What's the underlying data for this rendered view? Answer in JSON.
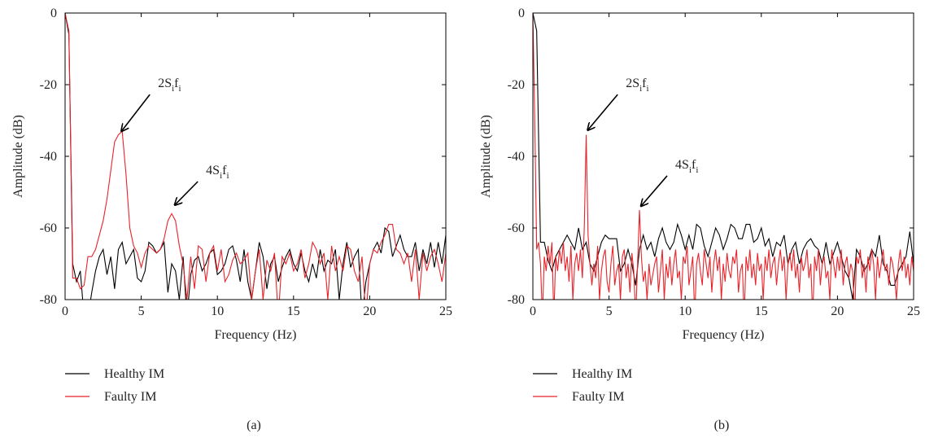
{
  "chart_data": [
    {
      "type": "line",
      "subtitle": "(a)",
      "xlabel": "Frequency (Hz)",
      "ylabel": "Amplitude (dB)",
      "xlim": [
        0,
        25
      ],
      "ylim": [
        -80,
        0
      ],
      "xticks": [
        0,
        5,
        10,
        15,
        20,
        25
      ],
      "yticks": [
        -80,
        -60,
        -40,
        -20,
        0
      ],
      "legend": "bottom",
      "x": [
        0,
        0.25,
        0.5,
        0.75,
        1,
        1.25,
        1.5,
        1.75,
        2,
        2.25,
        2.5,
        2.75,
        3,
        3.25,
        3.5,
        3.75,
        4,
        4.25,
        4.5,
        4.75,
        5,
        5.25,
        5.5,
        5.75,
        6,
        6.25,
        6.5,
        6.75,
        7,
        7.25,
        7.5,
        7.75,
        8,
        8.25,
        8.5,
        8.75,
        9,
        9.25,
        9.5,
        9.75,
        10,
        10.25,
        10.5,
        10.75,
        11,
        11.25,
        11.5,
        11.75,
        12,
        12.25,
        12.5,
        12.75,
        13,
        13.25,
        13.5,
        13.75,
        14,
        14.25,
        14.5,
        14.75,
        15,
        15.25,
        15.5,
        15.75,
        16,
        16.25,
        16.5,
        16.75,
        17,
        17.25,
        17.5,
        17.75,
        18,
        18.25,
        18.5,
        18.75,
        19,
        19.25,
        19.5,
        19.75,
        20,
        20.25,
        20.5,
        20.75,
        21,
        21.25,
        21.5,
        21.75,
        22,
        22.25,
        22.5,
        22.75,
        23,
        23.25,
        23.5,
        23.75,
        24,
        24.25,
        24.5,
        24.75,
        25
      ],
      "series": [
        {
          "name": "Healthy IM",
          "color": "#000000",
          "values": [
            0,
            -6,
            -70,
            -75,
            -72,
            -85,
            -85,
            -78,
            -72,
            -68,
            -66,
            -73,
            -68,
            -77,
            -66,
            -64,
            -70,
            -68,
            -66,
            -74,
            -75,
            -72,
            -64,
            -65,
            -67,
            -66,
            -64,
            -78,
            -70,
            -72,
            -80,
            -68,
            -85,
            -73,
            -69,
            -68,
            -72,
            -70,
            -67,
            -66,
            -73,
            -72,
            -70,
            -66,
            -65,
            -69,
            -75,
            -66,
            -75,
            -80,
            -72,
            -64,
            -68,
            -77,
            -70,
            -68,
            -75,
            -71,
            -68,
            -66,
            -70,
            -72,
            -67,
            -72,
            -75,
            -70,
            -74,
            -66,
            -72,
            -69,
            -70,
            -66,
            -80,
            -70,
            -64,
            -71,
            -68,
            -66,
            -85,
            -75,
            -70,
            -66,
            -64,
            -67,
            -60,
            -61,
            -68,
            -65,
            -62,
            -66,
            -68,
            -68,
            -64,
            -72,
            -66,
            -70,
            -64,
            -71,
            -64,
            -70,
            -62
          ]
        },
        {
          "name": "Faulty IM",
          "color": "#e8232a",
          "values": [
            0,
            -5,
            -74,
            -74,
            -77,
            -76,
            -68,
            -68,
            -66,
            -62,
            -58,
            -52,
            -44,
            -36,
            -34,
            -33,
            -45,
            -60,
            -65,
            -67,
            -71,
            -67,
            -65,
            -66,
            -67,
            -66,
            -63,
            -58,
            -56,
            -58,
            -65,
            -70,
            -80,
            -68,
            -77,
            -65,
            -66,
            -75,
            -67,
            -65,
            -72,
            -66,
            -75,
            -73,
            -69,
            -67,
            -70,
            -69,
            -67,
            -80,
            -72,
            -66,
            -80,
            -69,
            -72,
            -67,
            -85,
            -68,
            -70,
            -67,
            -72,
            -70,
            -66,
            -74,
            -70,
            -64,
            -66,
            -70,
            -67,
            -80,
            -65,
            -72,
            -68,
            -72,
            -65,
            -66,
            -72,
            -75,
            -68,
            -85,
            -70,
            -66,
            -67,
            -64,
            -62,
            -59,
            -59,
            -66,
            -67,
            -70,
            -67,
            -75,
            -66,
            -80,
            -67,
            -72,
            -68,
            -66,
            -70,
            -75,
            -67
          ]
        }
      ],
      "annotations": [
        {
          "text": [
            "2S",
            "i",
            "f",
            "i"
          ],
          "xy": [
            3.7,
            -33
          ],
          "xytext": [
            6.1,
            -20.7
          ]
        },
        {
          "text": [
            "4S",
            "i",
            "f",
            "i"
          ],
          "xy": [
            7.2,
            -53.6
          ],
          "xytext": [
            9.25,
            -45
          ]
        }
      ]
    },
    {
      "type": "line",
      "subtitle": "(b)",
      "xlabel": "Frequency (Hz)",
      "ylabel": "Amplitude (dB)",
      "xlim": [
        0,
        25
      ],
      "ylim": [
        -80,
        0
      ],
      "xticks": [
        0,
        5,
        10,
        15,
        20,
        25
      ],
      "yticks": [
        -80,
        -60,
        -40,
        -20,
        0
      ],
      "legend": "bottom",
      "series": [
        {
          "name": "Healthy IM",
          "color": "#000000",
          "x": [
            0,
            0.25,
            0.5,
            0.75,
            1,
            1.25,
            1.5,
            1.75,
            2,
            2.25,
            2.5,
            2.75,
            3,
            3.25,
            3.5,
            3.75,
            4,
            4.25,
            4.5,
            4.75,
            5,
            5.25,
            5.5,
            5.75,
            6,
            6.25,
            6.5,
            6.75,
            7,
            7.25,
            7.5,
            7.75,
            8,
            8.25,
            8.5,
            8.75,
            9,
            9.25,
            9.5,
            9.75,
            10,
            10.25,
            10.5,
            10.75,
            11,
            11.25,
            11.5,
            11.75,
            12,
            12.25,
            12.5,
            12.75,
            13,
            13.25,
            13.5,
            13.75,
            14,
            14.25,
            14.5,
            14.75,
            15,
            15.25,
            15.5,
            15.75,
            16,
            16.25,
            16.5,
            16.75,
            17,
            17.25,
            17.5,
            17.75,
            18,
            18.25,
            18.5,
            18.75,
            19,
            19.25,
            19.5,
            19.75,
            20,
            20.25,
            20.5,
            20.75,
            21,
            21.25,
            21.5,
            21.75,
            22,
            22.25,
            22.5,
            22.75,
            23,
            23.25,
            23.5,
            23.75,
            24,
            24.25,
            24.5,
            24.75,
            25
          ],
          "values": [
            0,
            -5,
            -64,
            -64,
            -69,
            -72,
            -68,
            -66,
            -64,
            -62,
            -64,
            -66,
            -60,
            -66,
            -64,
            -70,
            -72,
            -68,
            -64,
            -62,
            -63,
            -63,
            -63,
            -72,
            -70,
            -66,
            -70,
            -76,
            -66,
            -62,
            -66,
            -64,
            -68,
            -63,
            -60,
            -64,
            -66,
            -64,
            -59,
            -62,
            -66,
            -62,
            -66,
            -59,
            -60,
            -65,
            -68,
            -64,
            -60,
            -62,
            -66,
            -63,
            -59,
            -60,
            -63,
            -63,
            -59,
            -59,
            -64,
            -63,
            -60,
            -65,
            -63,
            -68,
            -64,
            -65,
            -62,
            -70,
            -66,
            -64,
            -70,
            -66,
            -64,
            -63,
            -65,
            -66,
            -70,
            -64,
            -70,
            -67,
            -64,
            -68,
            -72,
            -74,
            -80,
            -66,
            -68,
            -72,
            -70,
            -66,
            -68,
            -62,
            -70,
            -72,
            -76,
            -76,
            -72,
            -70,
            -68,
            -61,
            -70
          ]
        },
        {
          "name": "Faulty IM",
          "color": "#e8232a",
          "x": [
            0,
            0.125,
            0.25,
            0.375,
            0.5,
            0.625,
            0.75,
            0.875,
            1,
            1.125,
            1.25,
            1.375,
            1.5,
            1.625,
            1.75,
            1.875,
            2,
            2.125,
            2.25,
            2.375,
            2.5,
            2.625,
            2.75,
            2.875,
            3,
            3.125,
            3.25,
            3.375,
            3.5,
            3.625,
            3.75,
            3.875,
            4,
            4.125,
            4.25,
            4.375,
            4.5,
            4.625,
            4.75,
            4.875,
            5,
            5.125,
            5.25,
            5.375,
            5.5,
            5.625,
            5.75,
            5.875,
            6,
            6.125,
            6.25,
            6.375,
            6.5,
            6.625,
            6.75,
            6.875,
            7,
            7.125,
            7.25,
            7.375,
            7.5,
            7.625,
            7.75,
            7.875,
            8,
            8.125,
            8.25,
            8.375,
            8.5,
            8.625,
            8.75,
            8.875,
            9,
            9.125,
            9.25,
            9.375,
            9.5,
            9.625,
            9.75,
            9.875,
            10,
            10.125,
            10.25,
            10.375,
            10.5,
            10.625,
            10.75,
            10.875,
            11,
            11.125,
            11.25,
            11.375,
            11.5,
            11.625,
            11.75,
            11.875,
            12,
            12.125,
            12.25,
            12.375,
            12.5,
            12.625,
            12.75,
            12.875,
            13,
            13.125,
            13.25,
            13.375,
            13.5,
            13.625,
            13.75,
            13.875,
            14,
            14.125,
            14.25,
            14.375,
            14.5,
            14.625,
            14.75,
            14.875,
            15,
            15.125,
            15.25,
            15.375,
            15.5,
            15.625,
            15.75,
            15.875,
            16,
            16.125,
            16.25,
            16.375,
            16.5,
            16.625,
            16.75,
            16.875,
            17,
            17.125,
            17.25,
            17.375,
            17.5,
            17.625,
            17.75,
            17.875,
            18,
            18.125,
            18.25,
            18.375,
            18.5,
            18.625,
            18.75,
            18.875,
            19,
            19.125,
            19.25,
            19.375,
            19.5,
            19.625,
            19.75,
            19.875,
            20,
            20.125,
            20.25,
            20.375,
            20.5,
            20.625,
            20.75,
            20.875,
            21,
            21.125,
            21.25,
            21.375,
            21.5,
            21.625,
            21.75,
            21.875,
            22,
            22.125,
            22.25,
            22.375,
            22.5,
            22.625,
            22.75,
            22.875,
            23,
            23.125,
            23.25,
            23.375,
            23.5,
            23.625,
            23.75,
            23.875,
            24,
            24.125,
            24.25,
            24.375,
            24.5,
            24.625,
            24.75,
            24.875,
            25
          ],
          "values": [
            0,
            -30,
            -66,
            -64,
            -70,
            -85,
            -68,
            -72,
            -65,
            -70,
            -64,
            -85,
            -68,
            -72,
            -66,
            -70,
            -64,
            -72,
            -68,
            -75,
            -65,
            -80,
            -70,
            -67,
            -72,
            -66,
            -74,
            -60,
            -34,
            -62,
            -70,
            -76,
            -70,
            -74,
            -65,
            -80,
            -72,
            -68,
            -66,
            -75,
            -78,
            -70,
            -65,
            -76,
            -72,
            -70,
            -80,
            -68,
            -66,
            -74,
            -70,
            -78,
            -67,
            -72,
            -85,
            -70,
            -55,
            -68,
            -75,
            -72,
            -80,
            -70,
            -76,
            -73,
            -70,
            -68,
            -78,
            -72,
            -66,
            -80,
            -70,
            -74,
            -68,
            -76,
            -70,
            -66,
            -74,
            -72,
            -80,
            -68,
            -70,
            -65,
            -76,
            -72,
            -68,
            -85,
            -70,
            -67,
            -72,
            -76,
            -66,
            -70,
            -74,
            -68,
            -78,
            -70,
            -66,
            -72,
            -68,
            -80,
            -70,
            -75,
            -67,
            -72,
            -74,
            -68,
            -70,
            -66,
            -78,
            -72,
            -70,
            -85,
            -68,
            -72,
            -66,
            -74,
            -70,
            -76,
            -67,
            -72,
            -70,
            -80,
            -68,
            -72,
            -66,
            -74,
            -70,
            -68,
            -76,
            -70,
            -66,
            -72,
            -68,
            -80,
            -70,
            -67,
            -72,
            -66,
            -74,
            -70,
            -78,
            -68,
            -72,
            -70,
            -66,
            -74,
            -70,
            -85,
            -68,
            -72,
            -66,
            -76,
            -70,
            -68,
            -74,
            -72,
            -80,
            -66,
            -70,
            -74,
            -68,
            -72,
            -66,
            -76,
            -70,
            -68,
            -74,
            -70,
            -72,
            -85,
            -68,
            -70,
            -66,
            -74,
            -70,
            -78,
            -68,
            -72,
            -66,
            -70,
            -80,
            -68,
            -74,
            -70,
            -66,
            -72,
            -70,
            -76,
            -68,
            -70,
            -74,
            -80,
            -70,
            -66,
            -72,
            -68,
            -74,
            -70,
            -76,
            -68,
            -72
          ]
        }
      ],
      "annotations": [
        {
          "text": [
            "2S",
            "i",
            "f",
            "i"
          ],
          "xy": [
            3.6,
            -32.7
          ],
          "xytext": [
            6.1,
            -20.7
          ]
        },
        {
          "text": [
            "4S",
            "i",
            "f",
            "i"
          ],
          "xy": [
            7.1,
            -53.9
          ],
          "xytext": [
            9.35,
            -43.4
          ]
        }
      ]
    }
  ]
}
